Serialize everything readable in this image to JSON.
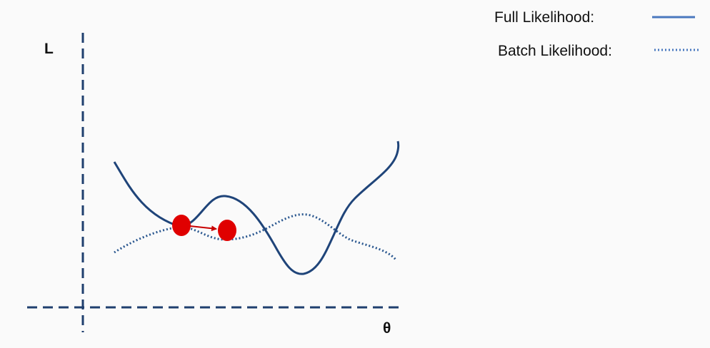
{
  "diagram": {
    "y_axis_label": "L",
    "x_axis_label": "θ",
    "legend": {
      "full_label": "Full Likelihood:",
      "batch_label": "Batch Likelihood:"
    },
    "colors": {
      "axis": "#1f3f6e",
      "full_curve": "#1f4479",
      "batch_curve": "#2a578f",
      "legend_line": "#4a78bf",
      "point": "#e00000",
      "arrow": "#c80000"
    }
  }
}
